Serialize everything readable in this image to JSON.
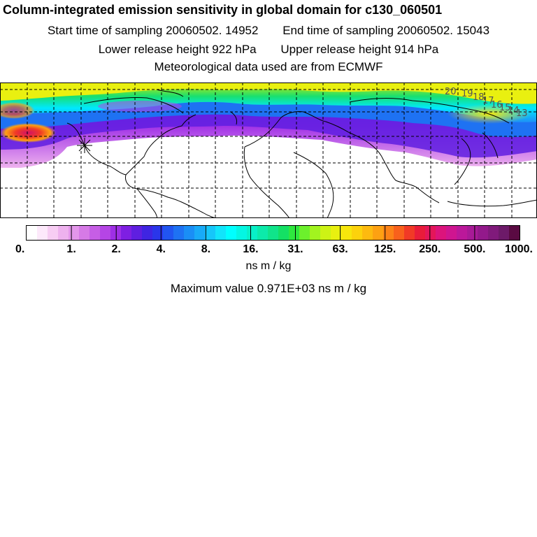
{
  "header": {
    "title": "Column-integrated emission sensitivity in global domain for c130_060501",
    "start_label": "Start time of sampling",
    "start_value": "20060502. 14952",
    "end_label": "End time of sampling",
    "end_value": "20060502. 15043",
    "lower_label": "Lower release height",
    "lower_value": "922 hPa",
    "upper_label": "Upper release height",
    "upper_value": "914 hPa",
    "met_line": "Meteorological data used are from ECMWF"
  },
  "map": {
    "release_marker": "star-marker",
    "plume_labels": [
      "20",
      "19",
      "18",
      "17",
      "16",
      "15",
      "14",
      "13"
    ],
    "color_low": "#ffffff",
    "color_high": "#5a0a42"
  },
  "colorbar": {
    "tick_labels": [
      "0.",
      "1.",
      "2.",
      "4.",
      "8.",
      "16.",
      "31.",
      "63.",
      "125.",
      "250.",
      "500.",
      "1000."
    ],
    "units": "ns m / kg",
    "colors": [
      "#ffffff",
      "#fde9fb",
      "#f7cdf3",
      "#eeb2ee",
      "#e397ea",
      "#d67ae6",
      "#c65ee5",
      "#b545e5",
      "#9f2fe6",
      "#7e1fe2",
      "#5f1fe0",
      "#3f25e2",
      "#2a36ea",
      "#2155f0",
      "#1e72f3",
      "#1a8ef6",
      "#18aaf8",
      "#16c6fa",
      "#12e4fb",
      "#00ffff",
      "#04f6e3",
      "#08f0c8",
      "#0ceaaa",
      "#10e48a",
      "#14e064",
      "#2ee83e",
      "#6cf02c",
      "#a2f41f",
      "#cdf315",
      "#e9f010",
      "#f7e60c",
      "#fcd20c",
      "#fdba0f",
      "#fda112",
      "#fc8317",
      "#f8611c",
      "#f13a26",
      "#e91c3a",
      "#e4165a",
      "#dc147c",
      "#cf1590",
      "#bb189a",
      "#a81a97",
      "#93198b",
      "#801a7b",
      "#6d1a69",
      "#5a0a42"
    ]
  },
  "maximum": {
    "label": "Maximum value",
    "value": "0.971E+03 ns m / kg"
  }
}
